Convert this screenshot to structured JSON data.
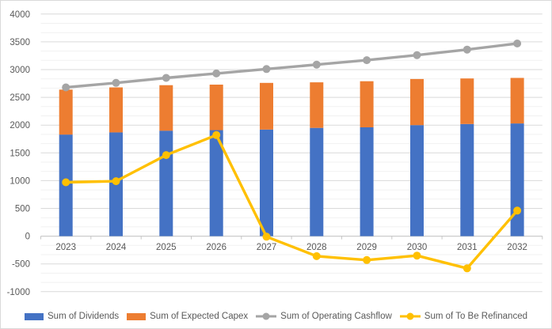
{
  "chart": {
    "background": "#ffffff",
    "border_color": "#d9d9d9",
    "axis_text_color": "#595959",
    "gridline_major_color": "#d9d9d9",
    "gridline_minor_color": "#f1f1f1",
    "axis_line_color": "#c6c6c6"
  },
  "chart_data": {
    "type": "combo",
    "title": "",
    "xlabel": "",
    "ylabel": "",
    "grid": true,
    "legend_position": "bottom",
    "categories": [
      "2023",
      "2024",
      "2025",
      "2026",
      "2027",
      "2028",
      "2029",
      "2030",
      "2031",
      "2032"
    ],
    "series": [
      {
        "name": "Sum of Dividends",
        "type": "bar-stacked",
        "color": "#4472c4",
        "values": [
          1830,
          1870,
          1900,
          1910,
          1920,
          1950,
          1960,
          2000,
          2020,
          2030
        ]
      },
      {
        "name": "Sum of Expected Capex",
        "type": "bar-stacked",
        "color": "#ed7d31",
        "values": [
          810,
          810,
          820,
          820,
          840,
          820,
          830,
          830,
          820,
          820
        ]
      },
      {
        "name": "Sum of Operating Cashflow",
        "type": "line",
        "color": "#a5a5a5",
        "values": [
          2680,
          2760,
          2850,
          2930,
          3010,
          3090,
          3170,
          3260,
          3360,
          3470
        ]
      },
      {
        "name": "Sum of To Be Refinanced",
        "type": "line",
        "color": "#ffc000",
        "values": [
          970,
          990,
          1460,
          1820,
          -10,
          -360,
          -430,
          -350,
          -580,
          460
        ]
      }
    ],
    "y_axis": {
      "min": -1000,
      "max": 4000,
      "major_unit": 500,
      "minor_unit": 166.667,
      "ticks": [
        {
          "label": "4000",
          "value": 4000
        },
        {
          "label": "3500",
          "value": 3500
        },
        {
          "label": "3000",
          "value": 3000
        },
        {
          "label": "2500",
          "value": 2500
        },
        {
          "label": "2000",
          "value": 2000
        },
        {
          "label": "1500",
          "value": 1500
        },
        {
          "label": "1000",
          "value": 1000
        },
        {
          "label": "500",
          "value": 500
        },
        {
          "label": "0",
          "value": 0
        },
        {
          "label": "-500",
          "value": -500
        },
        {
          "label": "-1000",
          "value": -1000
        }
      ]
    }
  }
}
